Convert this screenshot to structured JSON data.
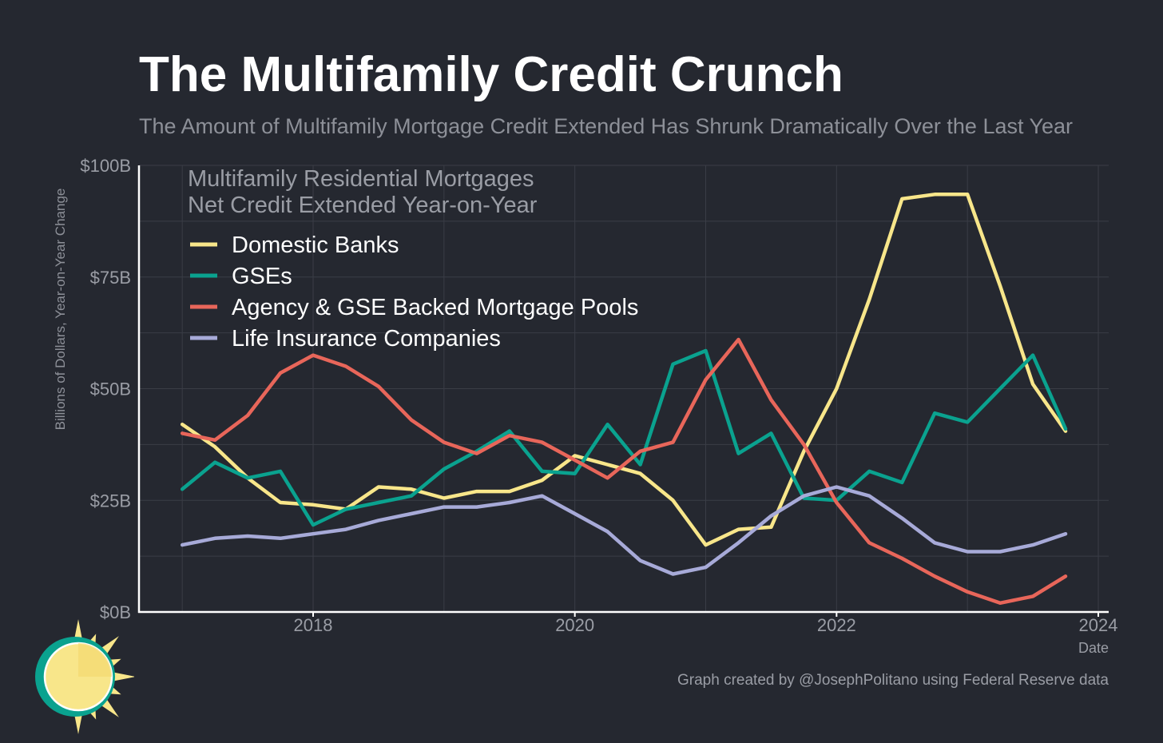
{
  "title": "The Multifamily Credit Crunch",
  "subtitle": "The Amount of Multifamily Mortgage Credit Extended Has Shrunk Dramatically Over the Last Year",
  "credit": "Graph created by @JosephPolitano using Federal Reserve data",
  "chart_data": {
    "type": "line",
    "annotation_lines": [
      "Multifamily Residential Mortgages",
      "Net Credit Extended Year-on-Year"
    ],
    "xlabel": "Date",
    "ylabel": "Billions of Dollars, Year-on-Year Change",
    "xlim": [
      2016.7,
      2024.0
    ],
    "ylim": [
      0,
      100
    ],
    "x_ticks": [
      2018,
      2020,
      2022,
      2024
    ],
    "x_tick_labels": [
      "2018",
      "2020",
      "2022",
      "2024"
    ],
    "y_ticks": [
      0,
      25,
      50,
      75,
      100
    ],
    "y_tick_labels": [
      "$0B",
      "$25B",
      "$50B",
      "$75B",
      "$100B"
    ],
    "grid": true,
    "legend_position": "top-left",
    "x": [
      2017.0,
      2017.25,
      2017.5,
      2017.75,
      2018.0,
      2018.25,
      2018.5,
      2018.75,
      2019.0,
      2019.25,
      2019.5,
      2019.75,
      2020.0,
      2020.25,
      2020.5,
      2020.75,
      2021.0,
      2021.25,
      2021.5,
      2021.75,
      2022.0,
      2022.25,
      2022.5,
      2022.75,
      2023.0,
      2023.25,
      2023.5,
      2023.75
    ],
    "series": [
      {
        "name": "Domestic Banks",
        "color": "#f8e68a",
        "values": [
          42,
          37,
          30,
          24.5,
          24,
          23,
          28,
          27.5,
          25.5,
          27,
          27,
          29.5,
          35,
          33,
          31,
          25,
          15,
          18.5,
          19,
          36,
          50,
          70,
          92.5,
          93.5,
          93.5,
          73,
          51,
          40.5
        ]
      },
      {
        "name": "GSEs",
        "color": "#0aa28f",
        "values": [
          27.5,
          33.5,
          30,
          31.5,
          19.5,
          23,
          24.5,
          26,
          32,
          36,
          40.5,
          31.5,
          31,
          42,
          33,
          55.5,
          58.5,
          35.5,
          40,
          25.5,
          25,
          31.5,
          29,
          44.5,
          42.5,
          50,
          57.5,
          41
        ]
      },
      {
        "name": "Agency & GSE Backed Mortgage Pools",
        "color": "#e8665a",
        "values": [
          40,
          38.5,
          44,
          53.5,
          57.5,
          55,
          50.5,
          43,
          38,
          35.5,
          39.5,
          38,
          34,
          30,
          36,
          38,
          52,
          61,
          47.5,
          37.5,
          24.5,
          15.5,
          12,
          8,
          4.5,
          2,
          3.5,
          8
        ]
      },
      {
        "name": "Life Insurance Companies",
        "color": "#a7aad8",
        "values": [
          15,
          16.5,
          17,
          16.5,
          17.5,
          18.5,
          20.5,
          22,
          23.5,
          23.5,
          24.5,
          26,
          22,
          18,
          11.5,
          8.5,
          10,
          15.5,
          21.5,
          26,
          28,
          26,
          21,
          15.5,
          13.5,
          13.5,
          15,
          17.5
        ]
      }
    ]
  }
}
